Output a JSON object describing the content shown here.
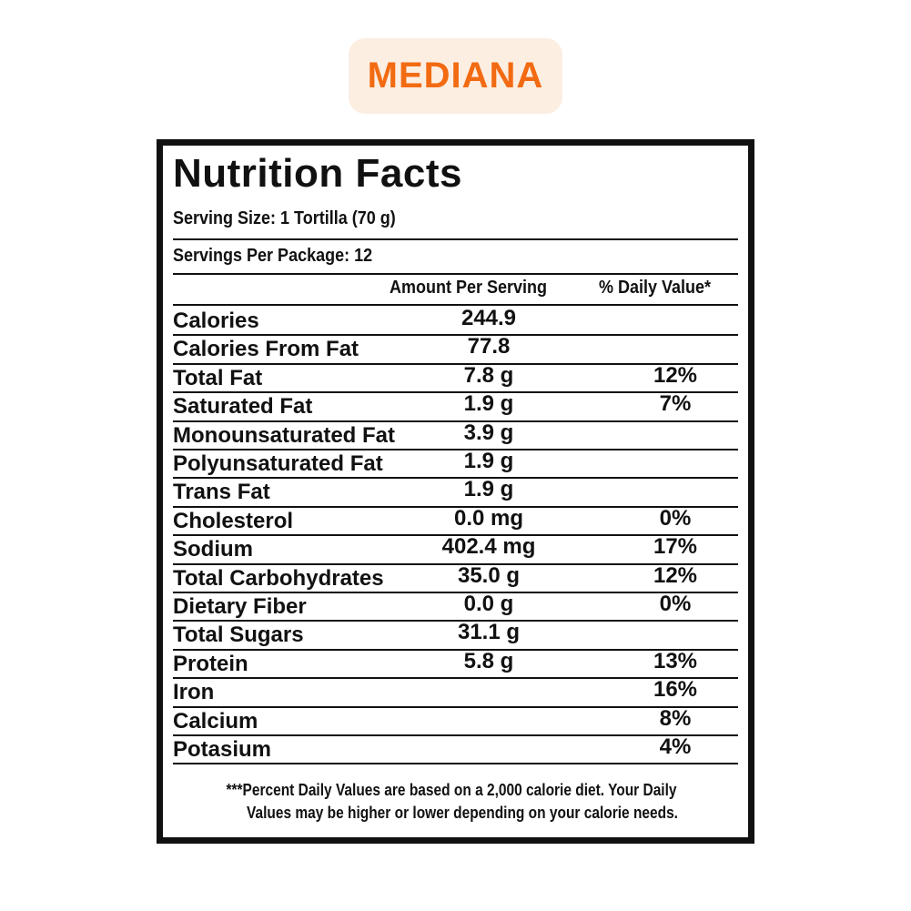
{
  "badge": "MEDIANA",
  "label": {
    "title": "Nutrition Facts",
    "serving_size": "Serving Size: 1 Tortilla (70 g)",
    "servings_per_package": "Servings Per Package: 12",
    "columns": [
      "Amount Per Serving",
      "% Daily Value*"
    ],
    "rows": [
      {
        "name": "Calories",
        "amount": "244.9"
      },
      {
        "name": "Calories From Fat",
        "amount": "77.8"
      },
      {
        "name": "Total Fat",
        "amount": "7.8 g",
        "daily_value": "12%"
      },
      {
        "name": "Saturated Fat",
        "amount": "1.9 g",
        "daily_value": "7%"
      },
      {
        "name": "Monounsaturated Fat",
        "amount": "3.9 g"
      },
      {
        "name": "Polyunsaturated Fat",
        "amount": "1.9 g"
      },
      {
        "name": "Trans Fat",
        "amount": "1.9 g"
      },
      {
        "name": "Cholesterol",
        "amount": "0.0 mg",
        "daily_value": "0%"
      },
      {
        "name": "Sodium",
        "amount": "402.4 mg",
        "daily_value": "17%"
      },
      {
        "name": "Total Carbohydrates",
        "amount": "35.0 g",
        "daily_value": "12%"
      },
      {
        "name": "Dietary Fiber",
        "amount": "0.0 g",
        "daily_value": "0%"
      },
      {
        "name": "Total Sugars",
        "amount": "31.1 g"
      },
      {
        "name": "Protein",
        "amount": "5.8 g",
        "daily_value": "13%"
      },
      {
        "name": "Iron",
        "daily_value": "16%"
      },
      {
        "name": "Calcium",
        "daily_value": "8%"
      },
      {
        "name": "Potasium",
        "daily_value": "4%"
      }
    ],
    "footnote": [
      "***Percent Daily Values are based on a 2,000 calorie diet. Your Daily",
      "Values may be higher or lower depending on your calorie needs."
    ]
  }
}
